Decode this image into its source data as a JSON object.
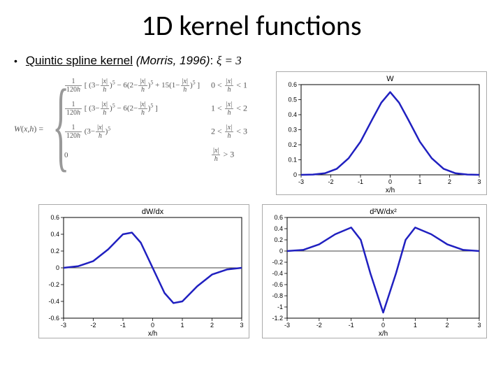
{
  "title": "1D kernel functions",
  "subtitle": {
    "kernel_name": "Quintic spline kernel",
    "ref": "(Morris, 1996)",
    "xi_label": "ξ = 3"
  },
  "formula": {
    "lhs": "W(x,h) =",
    "cases": [
      {
        "coef": "1/120h",
        "body": "[(3−|x|/h)^5 − 6(2−|x|/h)^5 + 15(1−|x|/h)^5]",
        "cond": "0 < |x|/h < 1"
      },
      {
        "coef": "1/120h",
        "body": "[(3−|x|/h)^5 − 6(2−|x|/h)^5]",
        "cond": "1 < |x|/h < 2"
      },
      {
        "coef": "1/120h",
        "body": "(3−|x|/h)^5",
        "cond": "2 < |x|/h < 3"
      },
      {
        "coef": "",
        "body": "0",
        "cond": "|x|/h > 3"
      }
    ]
  },
  "chart_W": {
    "type": "line",
    "title": "W",
    "xlabel": "x/h",
    "xlim": [
      -3,
      3
    ],
    "xticks": [
      -3,
      -2,
      -1,
      0,
      1,
      2,
      3
    ],
    "ylim": [
      0,
      0.6
    ],
    "yticks": [
      0,
      0.1,
      0.2,
      0.3,
      0.4,
      0.5,
      0.6
    ],
    "line_color": "#2020c0",
    "line_width": 2.5,
    "background_color": "#ffffff",
    "axis_color": "#000000",
    "data": [
      [
        -3,
        0
      ],
      [
        -2.6,
        0.002
      ],
      [
        -2.2,
        0.01
      ],
      [
        -1.8,
        0.04
      ],
      [
        -1.4,
        0.11
      ],
      [
        -1.0,
        0.22
      ],
      [
        -0.6,
        0.37
      ],
      [
        -0.3,
        0.48
      ],
      [
        0,
        0.55
      ],
      [
        0.3,
        0.48
      ],
      [
        0.6,
        0.37
      ],
      [
        1.0,
        0.22
      ],
      [
        1.4,
        0.11
      ],
      [
        1.8,
        0.04
      ],
      [
        2.2,
        0.01
      ],
      [
        2.6,
        0.002
      ],
      [
        3,
        0
      ]
    ]
  },
  "chart_dW": {
    "type": "line",
    "title": "dW/dx",
    "xlabel": "x/h",
    "xlim": [
      -3,
      3
    ],
    "xticks": [
      -3,
      -2,
      -1,
      0,
      1,
      2,
      3
    ],
    "ylim": [
      -0.6,
      0.6
    ],
    "yticks": [
      -0.6,
      -0.4,
      -0.2,
      0,
      0.2,
      0.4,
      0.6
    ],
    "line_color": "#2020c0",
    "line_width": 2.5,
    "background_color": "#ffffff",
    "axis_color": "#000000",
    "data": [
      [
        -3,
        0
      ],
      [
        -2.5,
        0.02
      ],
      [
        -2.0,
        0.08
      ],
      [
        -1.5,
        0.22
      ],
      [
        -1.0,
        0.4
      ],
      [
        -0.7,
        0.42
      ],
      [
        -0.4,
        0.3
      ],
      [
        0,
        0
      ],
      [
        0.4,
        -0.3
      ],
      [
        0.7,
        -0.42
      ],
      [
        1.0,
        -0.4
      ],
      [
        1.5,
        -0.22
      ],
      [
        2.0,
        -0.08
      ],
      [
        2.5,
        -0.02
      ],
      [
        3,
        0
      ]
    ]
  },
  "chart_d2W": {
    "type": "line",
    "title": "d²W/dx²",
    "xlabel": "x/h",
    "xlim": [
      -3,
      3
    ],
    "xticks": [
      -3,
      -2,
      -1,
      0,
      1,
      2,
      3
    ],
    "ylim": [
      -1.2,
      0.6
    ],
    "yticks": [
      -1.2,
      -1,
      -0.8,
      -0.6,
      -0.4,
      -0.2,
      0,
      0.2,
      0.4,
      0.6
    ],
    "line_color": "#2020c0",
    "line_width": 2.5,
    "background_color": "#ffffff",
    "axis_color": "#000000",
    "data": [
      [
        -3,
        0
      ],
      [
        -2.5,
        0.02
      ],
      [
        -2.0,
        0.12
      ],
      [
        -1.5,
        0.3
      ],
      [
        -1.0,
        0.42
      ],
      [
        -0.7,
        0.2
      ],
      [
        -0.4,
        -0.4
      ],
      [
        0,
        -1.1
      ],
      [
        0.4,
        -0.4
      ],
      [
        0.7,
        0.2
      ],
      [
        1.0,
        0.42
      ],
      [
        1.5,
        0.3
      ],
      [
        2.0,
        0.12
      ],
      [
        2.5,
        0.02
      ],
      [
        3,
        0
      ]
    ]
  }
}
